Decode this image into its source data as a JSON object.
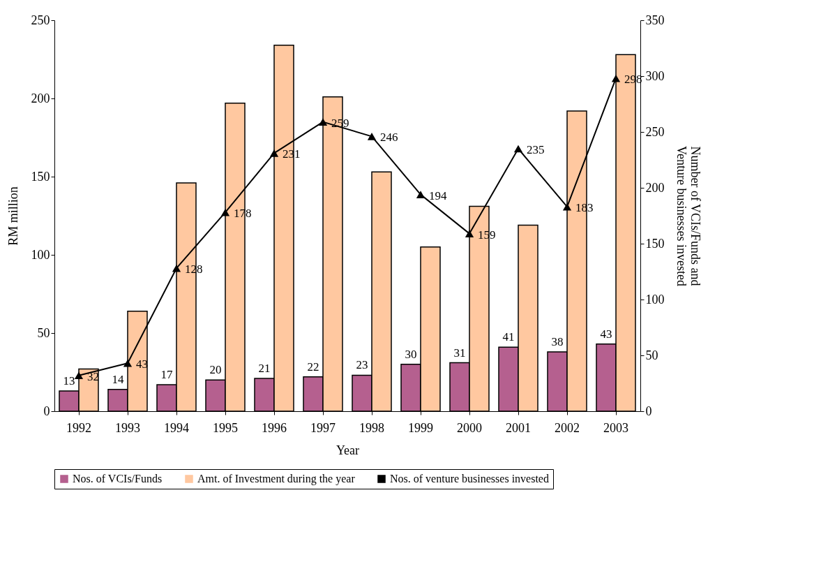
{
  "chart_data": {
    "type": "bar",
    "xlabel": "Year",
    "ylabel": "RM million",
    "y2label": "Number of VCIs/Funds and Venture businesses invested",
    "categories": [
      "1992",
      "1993",
      "1994",
      "1995",
      "1996",
      "1997",
      "1998",
      "1999",
      "2000",
      "2001",
      "2002",
      "2003"
    ],
    "series": [
      {
        "name": "Nos. of VCIs/Funds",
        "color": "#b5608f",
        "values": [
          13,
          14,
          17,
          20,
          21,
          22,
          23,
          30,
          31,
          41,
          38,
          43
        ],
        "value_labels": [
          "13",
          "14",
          "17",
          "20",
          "21",
          "22",
          "23",
          "30",
          "31",
          "41",
          "38",
          "43"
        ]
      },
      {
        "name": "Amt. of Investment during the year",
        "color": "#ffc8a0",
        "values": [
          27,
          64,
          146,
          197,
          234,
          201,
          153,
          105,
          131,
          119,
          192,
          228
        ]
      },
      {
        "name": "Nos. of venture businesses invested",
        "type": "line",
        "axis": "y2",
        "color": "#000000",
        "marker": "triangle",
        "values": [
          32,
          43,
          128,
          178,
          231,
          259,
          246,
          194,
          159,
          235,
          183,
          298
        ],
        "value_labels": [
          "32",
          "43",
          "128",
          "178",
          "231",
          "259",
          "246",
          "194",
          "159",
          "235",
          "183",
          "298"
        ]
      }
    ],
    "ylim": [
      0,
      250
    ],
    "yticks": [
      0,
      50,
      100,
      150,
      200,
      250
    ],
    "y2lim": [
      0,
      350
    ],
    "y2ticks": [
      0,
      50,
      100,
      150,
      200,
      250,
      300,
      350
    ],
    "grid": false,
    "legend": "bottom"
  }
}
